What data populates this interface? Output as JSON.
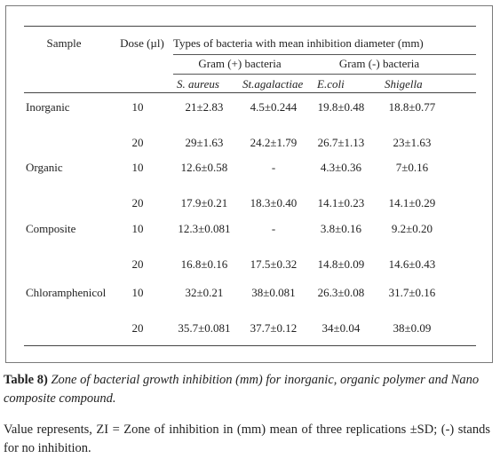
{
  "table": {
    "header": {
      "sample": "Sample",
      "dose": "Dose (µl)",
      "types": "Types of bacteria with mean inhibition diameter (mm)",
      "gram_pos": "Gram (+) bacteria",
      "gram_neg": "Gram (-) bacteria",
      "species": [
        "S. aureus",
        "St.agalactiae",
        "E.coli",
        "Shigella"
      ]
    },
    "rows": [
      {
        "sample": "Inorganic",
        "dose": "10",
        "values": [
          "21±2.83",
          "4.5±0.244",
          "19.8±0.48",
          "18.8±0.77"
        ]
      },
      {
        "sample": "",
        "dose": "20",
        "values": [
          "29±1.63",
          "24.2±1.79",
          "26.7±1.13",
          "23±1.63"
        ]
      },
      {
        "sample": "Organic",
        "dose": "10",
        "values": [
          "12.6±0.58",
          "-",
          "4.3±0.36",
          "7±0.16"
        ]
      },
      {
        "sample": "",
        "dose": "20",
        "values": [
          "17.9±0.21",
          "18.3±0.40",
          "14.1±0.23",
          "14.1±0.29"
        ]
      },
      {
        "sample": "Composite",
        "dose": "10",
        "values": [
          "12.3±0.081",
          "-",
          "3.8±0.16",
          "9.2±0.20"
        ]
      },
      {
        "sample": "",
        "dose": "20",
        "values": [
          "16.8±0.16",
          "17.5±0.32",
          "14.8±0.09",
          "14.6±0.43"
        ]
      },
      {
        "sample": "Chloramphenicol",
        "dose": "10",
        "values": [
          "32±0.21",
          "38±0.081",
          "26.3±0.08",
          "31.7±0.16"
        ]
      },
      {
        "sample": "",
        "dose": "20",
        "values": [
          "35.7±0.081",
          "37.7±0.12",
          "34±0.04",
          "38±0.09"
        ]
      }
    ]
  },
  "caption": {
    "label": "Table 8)",
    "text": "Zone of bacterial growth inhibition (mm) for inorganic, organic polymer and Nano composite compound."
  },
  "note": "Value represents, ZI = Zone of inhibition in (mm) mean of three replications ±SD; (-) stands for no inhibition."
}
